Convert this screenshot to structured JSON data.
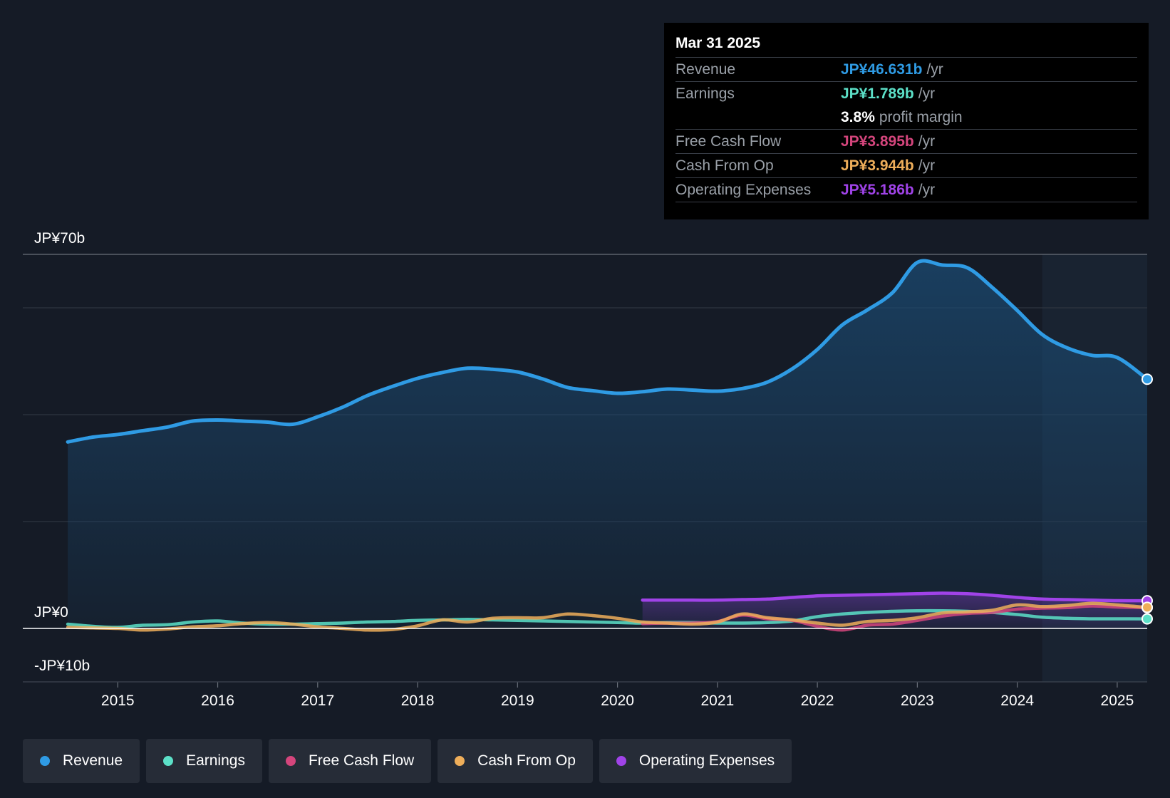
{
  "tooltip": {
    "date": "Mar 31 2025",
    "rows": [
      {
        "label": "Revenue",
        "value": "JP¥46.631b",
        "unit": "/yr",
        "color": "#2f9be4"
      },
      {
        "label": "Earnings",
        "value": "JP¥1.789b",
        "unit": "/yr",
        "color": "#5ce0c8"
      },
      {
        "label": "",
        "value": "3.8%",
        "unit": "profit margin",
        "color": "#ffffff"
      },
      {
        "label": "Free Cash Flow",
        "value": "JP¥3.895b",
        "unit": "/yr",
        "color": "#d4457c"
      },
      {
        "label": "Cash From Op",
        "value": "JP¥3.944b",
        "unit": "/yr",
        "color": "#eeae5a"
      },
      {
        "label": "Operating Expenses",
        "value": "JP¥5.186b",
        "unit": "/yr",
        "color": "#a043e8"
      }
    ]
  },
  "legend": [
    {
      "label": "Revenue",
      "color": "#2f9be4"
    },
    {
      "label": "Earnings",
      "color": "#5ce0c8"
    },
    {
      "label": "Free Cash Flow",
      "color": "#d4457c"
    },
    {
      "label": "Cash From Op",
      "color": "#eeae5a"
    },
    {
      "label": "Operating Expenses",
      "color": "#a043e8"
    }
  ],
  "chart_data": {
    "type": "line",
    "title": "",
    "xlabel": "",
    "ylabel": "",
    "ylim": [
      -10,
      70
    ],
    "xlim": [
      2014.05,
      2025.3
    ],
    "y_labels": [
      {
        "value": 70,
        "text": "JP¥70b"
      },
      {
        "value": 0,
        "text": "JP¥0"
      },
      {
        "value": -10,
        "text": "-JP¥10b"
      }
    ],
    "gridlines": [
      70,
      60,
      40,
      20,
      -10
    ],
    "x_ticks": [
      2015,
      2016,
      2017,
      2018,
      2019,
      2020,
      2021,
      2022,
      2023,
      2024,
      2025
    ],
    "x_tick_labels": [
      "2015",
      "2016",
      "2017",
      "2018",
      "2019",
      "2020",
      "2021",
      "2022",
      "2023",
      "2024",
      "2025"
    ],
    "forecast_start": 2024.25,
    "series": [
      {
        "name": "Revenue",
        "color": "#2f9be4",
        "filled": true,
        "points": [
          [
            2014.5,
            34.9
          ],
          [
            2014.75,
            35.8
          ],
          [
            2015.0,
            36.3
          ],
          [
            2015.25,
            37.0
          ],
          [
            2015.5,
            37.7
          ],
          [
            2015.75,
            38.8
          ],
          [
            2016.0,
            39.0
          ],
          [
            2016.25,
            38.8
          ],
          [
            2016.5,
            38.6
          ],
          [
            2016.75,
            38.2
          ],
          [
            2017.0,
            39.6
          ],
          [
            2017.25,
            41.4
          ],
          [
            2017.5,
            43.6
          ],
          [
            2017.75,
            45.3
          ],
          [
            2018.0,
            46.8
          ],
          [
            2018.25,
            47.9
          ],
          [
            2018.5,
            48.7
          ],
          [
            2018.75,
            48.5
          ],
          [
            2019.0,
            48.0
          ],
          [
            2019.25,
            46.7
          ],
          [
            2019.5,
            45.1
          ],
          [
            2019.75,
            44.5
          ],
          [
            2020.0,
            44.0
          ],
          [
            2020.25,
            44.3
          ],
          [
            2020.5,
            44.8
          ],
          [
            2020.75,
            44.6
          ],
          [
            2021.0,
            44.4
          ],
          [
            2021.25,
            44.9
          ],
          [
            2021.5,
            46.1
          ],
          [
            2021.75,
            48.6
          ],
          [
            2022.0,
            52.2
          ],
          [
            2022.25,
            56.8
          ],
          [
            2022.5,
            59.6
          ],
          [
            2022.75,
            62.8
          ],
          [
            2023.0,
            68.5
          ],
          [
            2023.25,
            68.0
          ],
          [
            2023.5,
            67.5
          ],
          [
            2023.75,
            63.8
          ],
          [
            2024.0,
            59.5
          ],
          [
            2024.25,
            55.0
          ],
          [
            2024.5,
            52.5
          ],
          [
            2024.75,
            51.1
          ],
          [
            2025.0,
            50.7
          ],
          [
            2025.3,
            46.631
          ]
        ]
      },
      {
        "name": "Earnings",
        "color": "#5ce0c8",
        "filled": false,
        "points": [
          [
            2014.5,
            0.8
          ],
          [
            2014.75,
            0.4
          ],
          [
            2015.0,
            0.2
          ],
          [
            2015.25,
            0.6
          ],
          [
            2015.5,
            0.7
          ],
          [
            2015.75,
            1.2
          ],
          [
            2016.0,
            1.4
          ],
          [
            2016.25,
            1.0
          ],
          [
            2016.5,
            0.8
          ],
          [
            2016.75,
            0.8
          ],
          [
            2017.0,
            0.9
          ],
          [
            2017.25,
            1.0
          ],
          [
            2017.5,
            1.2
          ],
          [
            2017.75,
            1.3
          ],
          [
            2018.0,
            1.5
          ],
          [
            2018.25,
            1.6
          ],
          [
            2018.5,
            1.7
          ],
          [
            2018.75,
            1.6
          ],
          [
            2019.0,
            1.5
          ],
          [
            2019.25,
            1.4
          ],
          [
            2019.5,
            1.3
          ],
          [
            2019.75,
            1.2
          ],
          [
            2020.0,
            1.1
          ],
          [
            2020.25,
            1.0
          ],
          [
            2020.5,
            1.1
          ],
          [
            2020.75,
            1.1
          ],
          [
            2021.0,
            1.0
          ],
          [
            2021.25,
            1.0
          ],
          [
            2021.5,
            1.1
          ],
          [
            2021.75,
            1.4
          ],
          [
            2022.0,
            2.2
          ],
          [
            2022.25,
            2.7
          ],
          [
            2022.5,
            3.0
          ],
          [
            2022.75,
            3.2
          ],
          [
            2023.0,
            3.3
          ],
          [
            2023.25,
            3.3
          ],
          [
            2023.5,
            3.2
          ],
          [
            2023.75,
            3.0
          ],
          [
            2024.0,
            2.6
          ],
          [
            2024.25,
            2.1
          ],
          [
            2024.5,
            1.9
          ],
          [
            2024.75,
            1.8
          ],
          [
            2025.0,
            1.8
          ],
          [
            2025.3,
            1.789
          ]
        ]
      },
      {
        "name": "Free Cash Flow",
        "color": "#d4457c",
        "filled": false,
        "points": [
          [
            2020.25,
            0.9
          ],
          [
            2020.5,
            1.0
          ],
          [
            2020.75,
            1.0
          ],
          [
            2021.0,
            1.3
          ],
          [
            2021.25,
            2.5
          ],
          [
            2021.5,
            1.8
          ],
          [
            2021.75,
            1.5
          ],
          [
            2022.0,
            0.4
          ],
          [
            2022.25,
            -0.3
          ],
          [
            2022.5,
            0.6
          ],
          [
            2022.75,
            0.8
          ],
          [
            2023.0,
            1.5
          ],
          [
            2023.25,
            2.3
          ],
          [
            2023.5,
            2.8
          ],
          [
            2023.75,
            3.0
          ],
          [
            2024.0,
            3.6
          ],
          [
            2024.25,
            3.8
          ],
          [
            2024.5,
            3.9
          ],
          [
            2024.75,
            4.2
          ],
          [
            2025.0,
            4.0
          ],
          [
            2025.3,
            3.895
          ]
        ]
      },
      {
        "name": "Cash From Op",
        "color": "#eeae5a",
        "filled": false,
        "points": [
          [
            2014.5,
            0.2
          ],
          [
            2014.75,
            0.1
          ],
          [
            2015.0,
            0.0
          ],
          [
            2015.25,
            -0.3
          ],
          [
            2015.5,
            -0.1
          ],
          [
            2015.75,
            0.3
          ],
          [
            2016.0,
            0.5
          ],
          [
            2016.25,
            0.9
          ],
          [
            2016.5,
            1.1
          ],
          [
            2016.75,
            0.8
          ],
          [
            2017.0,
            0.3
          ],
          [
            2017.25,
            0.0
          ],
          [
            2017.5,
            -0.3
          ],
          [
            2017.75,
            -0.2
          ],
          [
            2018.0,
            0.5
          ],
          [
            2018.25,
            1.6
          ],
          [
            2018.5,
            1.2
          ],
          [
            2018.75,
            1.9
          ],
          [
            2019.0,
            2.0
          ],
          [
            2019.25,
            2.0
          ],
          [
            2019.5,
            2.7
          ],
          [
            2019.75,
            2.4
          ],
          [
            2020.0,
            1.9
          ],
          [
            2020.25,
            1.2
          ],
          [
            2020.5,
            1.0
          ],
          [
            2020.75,
            0.8
          ],
          [
            2021.0,
            1.2
          ],
          [
            2021.25,
            2.7
          ],
          [
            2021.5,
            2.0
          ],
          [
            2021.75,
            1.6
          ],
          [
            2022.0,
            1.0
          ],
          [
            2022.25,
            0.6
          ],
          [
            2022.5,
            1.3
          ],
          [
            2022.75,
            1.5
          ],
          [
            2023.0,
            2.0
          ],
          [
            2023.25,
            2.9
          ],
          [
            2023.5,
            3.1
          ],
          [
            2023.75,
            3.4
          ],
          [
            2024.0,
            4.4
          ],
          [
            2024.25,
            4.1
          ],
          [
            2024.5,
            4.3
          ],
          [
            2024.75,
            4.7
          ],
          [
            2025.0,
            4.4
          ],
          [
            2025.3,
            3.944
          ]
        ]
      },
      {
        "name": "Operating Expenses",
        "color": "#a043e8",
        "filled": true,
        "points": [
          [
            2020.25,
            5.3
          ],
          [
            2020.5,
            5.3
          ],
          [
            2020.75,
            5.3
          ],
          [
            2021.0,
            5.3
          ],
          [
            2021.25,
            5.4
          ],
          [
            2021.5,
            5.5
          ],
          [
            2021.75,
            5.8
          ],
          [
            2022.0,
            6.1
          ],
          [
            2022.25,
            6.2
          ],
          [
            2022.5,
            6.3
          ],
          [
            2022.75,
            6.4
          ],
          [
            2023.0,
            6.5
          ],
          [
            2023.25,
            6.6
          ],
          [
            2023.5,
            6.5
          ],
          [
            2023.75,
            6.2
          ],
          [
            2024.0,
            5.8
          ],
          [
            2024.25,
            5.5
          ],
          [
            2024.5,
            5.4
          ],
          [
            2024.75,
            5.3
          ],
          [
            2025.0,
            5.2
          ],
          [
            2025.3,
            5.186
          ]
        ]
      }
    ]
  }
}
